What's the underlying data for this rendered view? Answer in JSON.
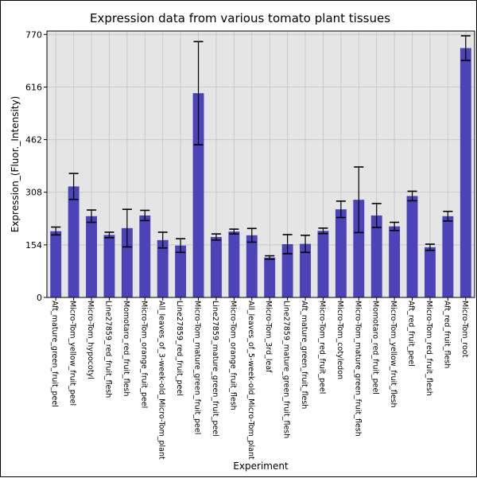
{
  "chart_data": {
    "type": "bar",
    "title": "Expression data from various tomato plant tissues",
    "xlabel": "Experiment",
    "ylabel": "Expression_(Fluor._Intensity)",
    "ylim": [
      0,
      780
    ],
    "yticks": [
      0,
      154,
      308,
      462,
      616,
      770
    ],
    "grid": true,
    "bar_color": "#4b43b7",
    "plot_background": "#e5e5e5",
    "grid_color": "#c8c8c8",
    "categories": [
      "Aft_mature_green_fruit_peel",
      "Micro-Tom_yellow_fruit_peel",
      "Micro-Tom_hypocotyl",
      "Line27859_red_fruit_flesh",
      "Momotaro_red_fruit_flesh",
      "Micro-Tom_orange_fruit_peel",
      "All_leaves_of_3-week-old_Micro-Tom_plant",
      "Line27859_red_fruit_peel",
      "Micro-Tom_mature_green_fruit_peel",
      "Line27859_mature_green_fruit_peel",
      "Micro-Tom_orange_fruit_flesh",
      "All_leaves_of_5-week-old_Micro-Tom_plant",
      "Micro-Tom_3rd_leaf",
      "Line27859_mature_green_fruit_flesh",
      "Aft_mature_green_fruit_flesh",
      "Micro-Tom_red_fruit_peel",
      "Micro-Tom_cotyledon",
      "Micro-Tom_mature_green_fruit_flesh",
      "Momotaro_red_fruit_peel",
      "Micro-Tom_yellow_fruit_flesh",
      "Aft_red_fruit_peel",
      "Micro-Tom_red_fruit_flesh",
      "Aft_red_fruit_flesh",
      "Micro-Tom_root"
    ],
    "values": [
      194,
      325,
      238,
      183,
      203,
      240,
      168,
      152,
      598,
      177,
      193,
      182,
      117,
      156,
      157,
      195,
      258,
      286,
      240,
      208,
      297,
      147,
      238,
      730
    ],
    "error_low": [
      183,
      287,
      220,
      175,
      148,
      225,
      145,
      132,
      447,
      168,
      186,
      162,
      112,
      128,
      132,
      187,
      234,
      190,
      205,
      196,
      283,
      138,
      224,
      694
    ],
    "error_high": [
      206,
      363,
      256,
      191,
      258,
      255,
      191,
      172,
      749,
      186,
      200,
      202,
      122,
      184,
      182,
      203,
      282,
      382,
      275,
      220,
      311,
      156,
      252,
      766
    ]
  }
}
